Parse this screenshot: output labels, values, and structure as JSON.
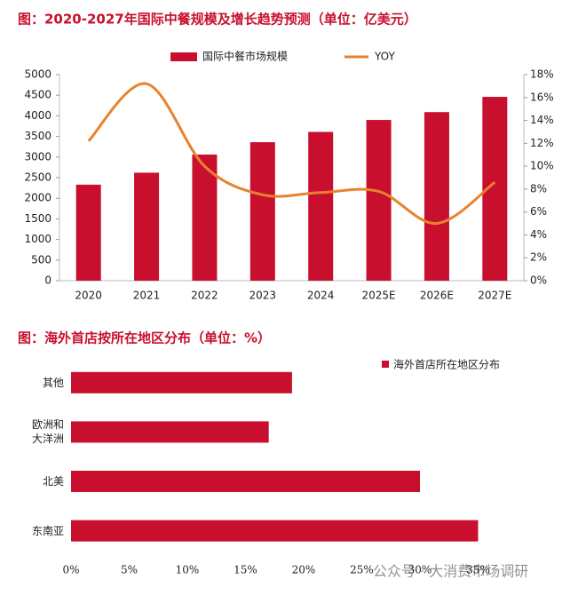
{
  "chart_data": [
    {
      "type": "bar",
      "title": "图：2020-2027年国际中餐规模及增长趋势预测（单位：亿美元）",
      "categories": [
        "2020",
        "2021",
        "2022",
        "2023",
        "2024",
        "2025E",
        "2026E",
        "2027E"
      ],
      "series": [
        {
          "name": "国际中餐市场规模",
          "color": "#c8102e",
          "values": [
            2330,
            2620,
            3060,
            3360,
            3610,
            3900,
            4090,
            4460
          ]
        },
        {
          "name": "YOY",
          "type": "line",
          "axis": "y2",
          "color": "#e8822e",
          "values": [
            12.2,
            17.2,
            10.0,
            7.5,
            7.7,
            7.8,
            5.0,
            8.6
          ]
        }
      ],
      "ylim": [
        0,
        5000
      ],
      "yticks": [
        0,
        500,
        1000,
        1500,
        2000,
        2500,
        3000,
        3500,
        4000,
        4500,
        5000
      ],
      "y2lim": [
        0,
        18
      ],
      "y2ticks": [
        {
          "value": 0,
          "label": "0%"
        },
        {
          "value": 2,
          "label": "2%"
        },
        {
          "value": 4,
          "label": "4%"
        },
        {
          "value": 6,
          "label": "6%"
        },
        {
          "value": 8,
          "label": "8%"
        },
        {
          "value": 10,
          "label": "10%"
        },
        {
          "value": 12,
          "label": "12%"
        },
        {
          "value": 14,
          "label": "14%"
        },
        {
          "value": 16,
          "label": "16%"
        },
        {
          "value": 18,
          "label": "18%"
        }
      ],
      "legend": "top"
    },
    {
      "type": "barh",
      "title": "图：海外首店按所在地区分布（单位：%）",
      "categories": [
        "其他",
        "欧洲和\n大洋洲",
        "北美",
        "东南亚"
      ],
      "series": [
        {
          "name": "海外首店所在地区分布",
          "color": "#c8102e",
          "values": [
            19,
            17,
            30,
            35
          ]
        }
      ],
      "xlim": [
        0,
        35
      ],
      "xticks": [
        {
          "value": 0,
          "label": "0%"
        },
        {
          "value": 5,
          "label": "5%"
        },
        {
          "value": 10,
          "label": "10%"
        },
        {
          "value": 15,
          "label": "15%"
        },
        {
          "value": 20,
          "label": "20%"
        },
        {
          "value": 25,
          "label": "25%"
        },
        {
          "value": 30,
          "label": "30%"
        },
        {
          "value": 35,
          "label": "35%"
        }
      ],
      "legend": "top-right"
    }
  ],
  "watermark": "公众号 · 大消费市场调研"
}
